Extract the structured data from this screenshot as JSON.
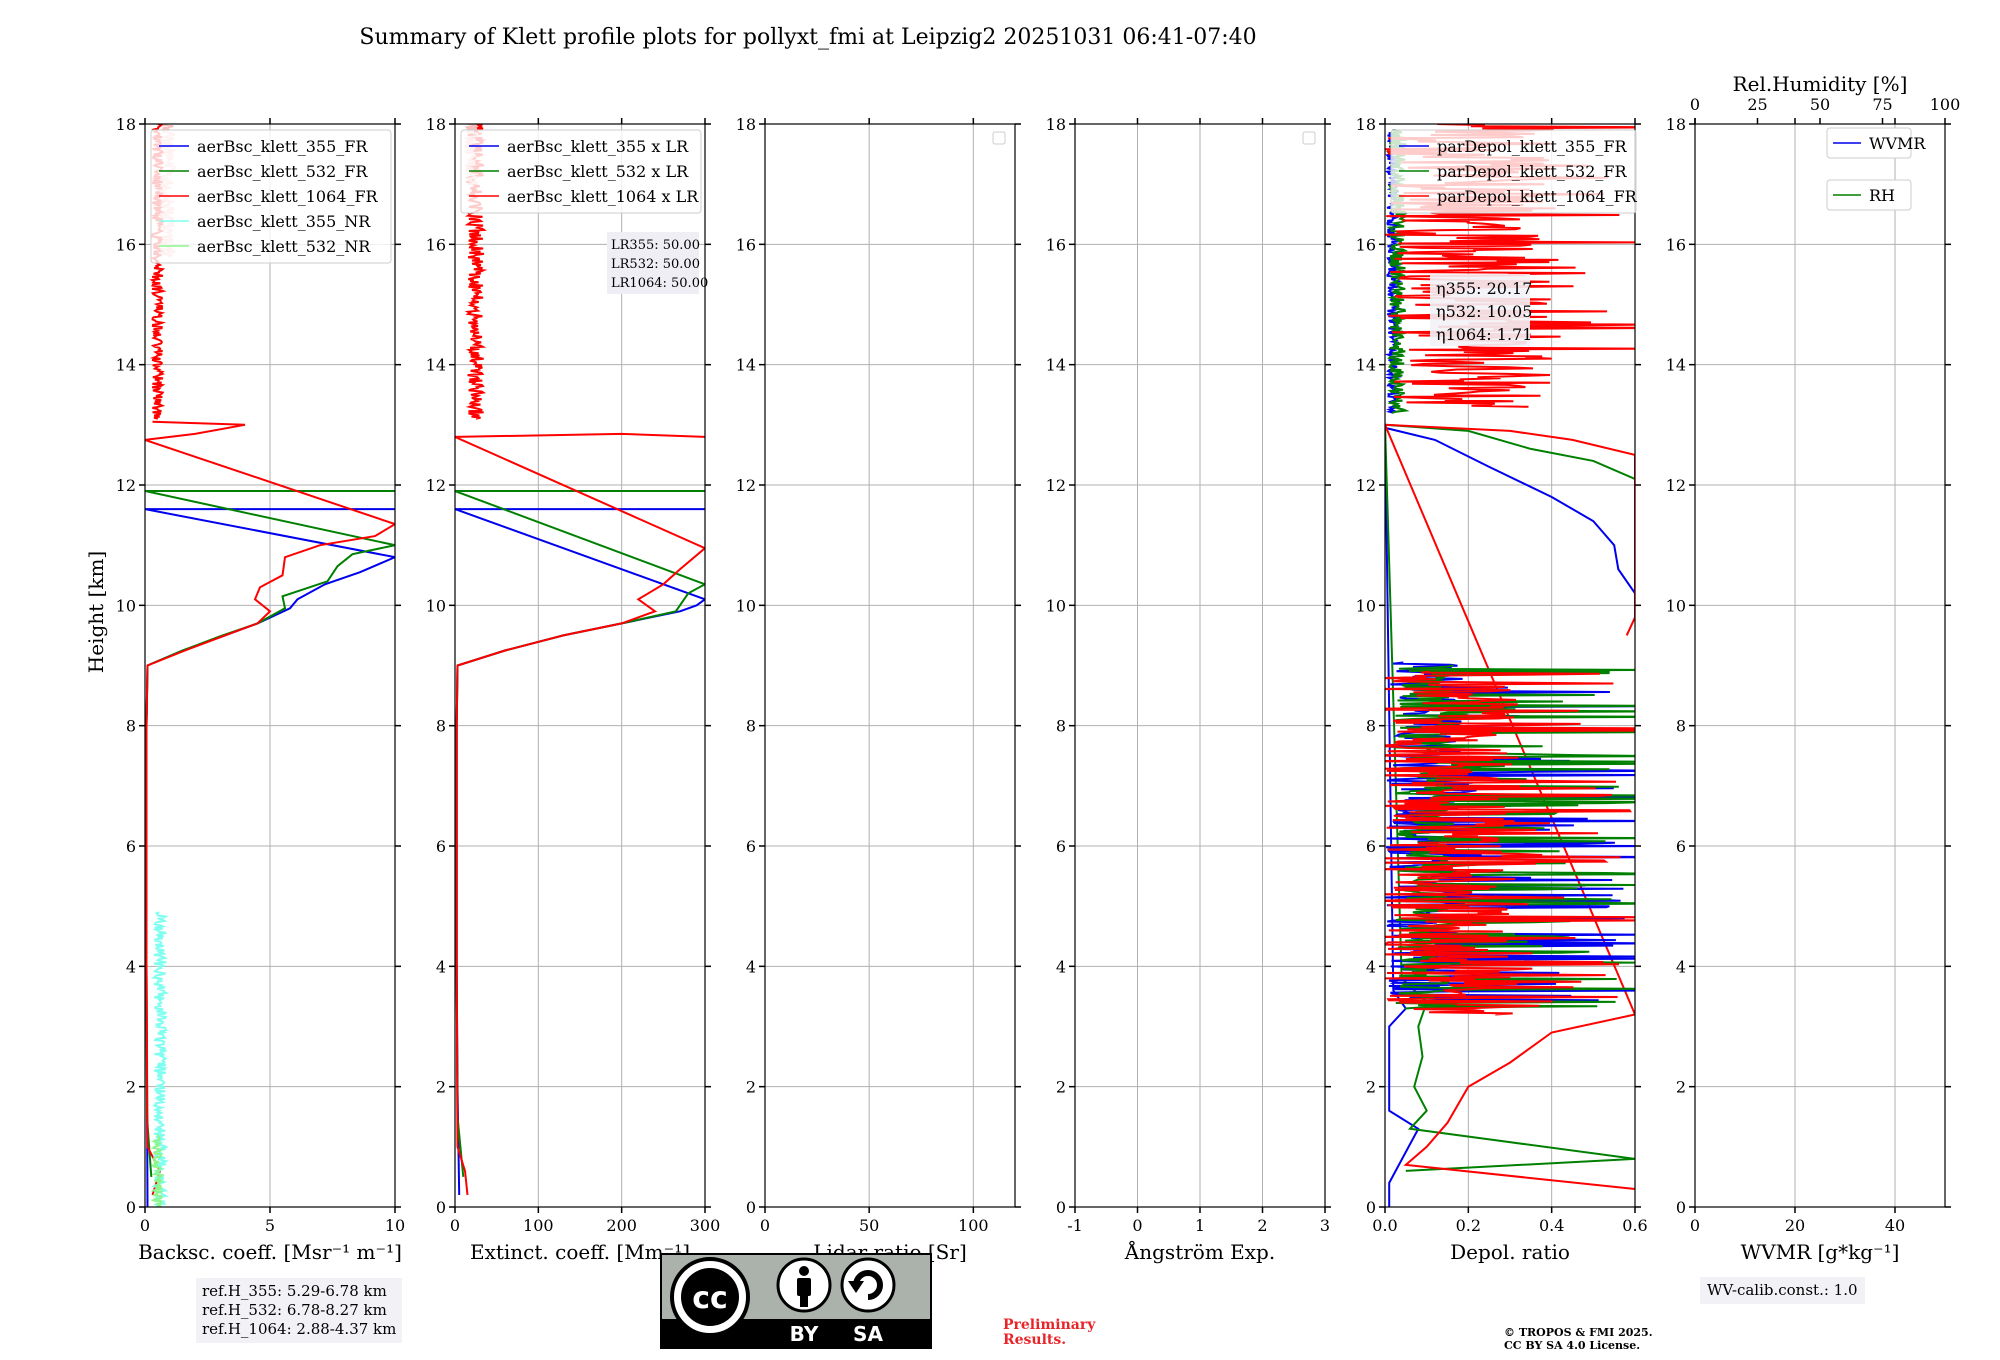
{
  "title": "Summary of Klett profile plots for pollyxt_fmi at Leipzig2 20251031 06:41-07:40",
  "shared": {
    "ylabel": "Height [km]",
    "ylim": [
      0,
      18
    ],
    "yticks": [
      0,
      2,
      4,
      6,
      8,
      10,
      12,
      14,
      16,
      18
    ]
  },
  "colors": {
    "blue": "#0000ee",
    "green": "#008000",
    "red": "#ff0000",
    "cyan": "#7fffef",
    "lightgreen": "#8cf58c",
    "pink": "#f7bebe"
  },
  "notes": {
    "ref_h": [
      "ref.H_355: 5.29-6.78 km",
      "ref.H_532: 6.78-8.27 km",
      "ref.H_1064: 2.88-4.37 km"
    ],
    "lr": [
      "LR355: 50.00",
      "LR532: 50.00",
      "LR1064: 50.00"
    ],
    "eta": [
      "η355: 20.17",
      "η532: 10.05",
      "η1064: 1.71"
    ],
    "preliminary": [
      "Preliminary",
      "Results."
    ],
    "copyright": [
      "© TROPOS & FMI 2025.",
      "CC BY SA 4.0 License."
    ],
    "wv_calib": "WV-calib.const.: 1.0",
    "cc_badge": {
      "cc": "cc",
      "by": "BY",
      "sa": "SA"
    }
  },
  "chart_data": [
    {
      "type": "line",
      "name": "backscatter",
      "xlabel": "Backsc. coeff. [Msr⁻¹ m⁻¹]",
      "xlim": [
        0,
        10
      ],
      "xticks": [
        0,
        5,
        10
      ],
      "legend": [
        "aerBsc_klett_355_FR",
        "aerBsc_klett_532_FR",
        "aerBsc_klett_1064_FR",
        "aerBsc_klett_355_NR",
        "aerBsc_klett_532_NR"
      ],
      "legend_colors": [
        "#0000ee",
        "#008000",
        "#ff0000",
        "#7fffef",
        "#8cf58c"
      ],
      "series": [
        {
          "name": "aerBsc_klett_355_FR",
          "color": "#0000ee",
          "points": [
            [
              0.1,
              0
            ],
            [
              0.08,
              2
            ],
            [
              0.06,
              4
            ],
            [
              0.06,
              6
            ],
            [
              0.06,
              8
            ],
            [
              0.1,
              9.0
            ],
            [
              1.5,
              9.25
            ],
            [
              3.2,
              9.5
            ],
            [
              4.5,
              9.7
            ],
            [
              5.8,
              9.95
            ],
            [
              6.1,
              10.1
            ],
            [
              7.2,
              10.35
            ],
            [
              8.6,
              10.55
            ],
            [
              10,
              10.8
            ],
            [
              0,
              11.6
            ],
            [
              10,
              11.6
            ]
          ]
        },
        {
          "name": "aerBsc_klett_532_FR",
          "color": "#008000",
          "points": [
            [
              0.25,
              0.5
            ],
            [
              0.08,
              1.5
            ],
            [
              0.06,
              4
            ],
            [
              0.06,
              8
            ],
            [
              0.1,
              9.0
            ],
            [
              1.5,
              9.25
            ],
            [
              3.1,
              9.5
            ],
            [
              4.5,
              9.7
            ],
            [
              5.6,
              9.95
            ],
            [
              5.5,
              10.15
            ],
            [
              7.3,
              10.4
            ],
            [
              7.7,
              10.65
            ],
            [
              8.3,
              10.85
            ],
            [
              10,
              11.0
            ],
            [
              0,
              11.9
            ],
            [
              10,
              11.9
            ]
          ]
        },
        {
          "name": "aerBsc_klett_1064_FR",
          "color": "#ff0000",
          "points": [
            [
              0.3,
              0.2
            ],
            [
              0.6,
              0.6
            ],
            [
              0.1,
              1.0
            ],
            [
              0.06,
              4
            ],
            [
              0.06,
              8
            ],
            [
              0.1,
              9.0
            ],
            [
              1.6,
              9.25
            ],
            [
              3.2,
              9.5
            ],
            [
              4.5,
              9.7
            ],
            [
              5,
              9.9
            ],
            [
              4.4,
              10.1
            ],
            [
              4.6,
              10.3
            ],
            [
              5.5,
              10.5
            ],
            [
              5.6,
              10.8
            ],
            [
              7,
              11.0
            ],
            [
              9.2,
              11.15
            ],
            [
              10,
              11.35
            ],
            [
              0,
              12.75
            ],
            [
              2,
              12.85
            ],
            [
              4,
              13.0
            ],
            [
              0.3,
              13.05
            ]
          ]
        },
        {
          "name": "aerBsc_klett_1064_FR_upper",
          "color": "#ff0000",
          "noise": true,
          "range": [
            13.1,
            18
          ],
          "xmean": 0.5,
          "xamp": 0.45
        },
        {
          "name": "aerBsc_klett_355_NR",
          "color": "#7fffef",
          "noise": true,
          "range": [
            0,
            4.9
          ],
          "xmean": 0.6,
          "xamp": 0.5
        },
        {
          "name": "aerBsc_klett_532_NR",
          "color": "#8cf58c",
          "noise": true,
          "range": [
            0,
            1.2
          ],
          "xmean": 0.5,
          "xamp": 0.4
        },
        {
          "name": "aerBsc_klett_pink",
          "color": "#f7bebe",
          "noise": true,
          "range": [
            15.8,
            18
          ],
          "xmean": 0.9,
          "xamp": 0.6
        }
      ]
    },
    {
      "type": "line",
      "name": "extinction",
      "xlabel": "Extinct. coeff. [Mm⁻¹]",
      "xlim": [
        0,
        300
      ],
      "xticks": [
        0,
        100,
        200,
        300
      ],
      "legend": [
        "aerBsc_klett_355 x LR",
        "aerBsc_klett_532 x LR",
        "aerBsc_klett_1064 x LR"
      ],
      "legend_colors": [
        "#0000ee",
        "#008000",
        "#ff0000"
      ],
      "series": [
        {
          "name": "ext_355",
          "color": "#0000ee",
          "points": [
            [
              5,
              0.2
            ],
            [
              3,
              2
            ],
            [
              2,
              4
            ],
            [
              2,
              8
            ],
            [
              3,
              9.0
            ],
            [
              60,
              9.25
            ],
            [
              130,
              9.5
            ],
            [
              200,
              9.7
            ],
            [
              270,
              9.9
            ],
            [
              290,
              10.0
            ],
            [
              300,
              10.1
            ],
            [
              0,
              11.6
            ],
            [
              300,
              11.6
            ]
          ]
        },
        {
          "name": "ext_532",
          "color": "#008000",
          "points": [
            [
              10,
              0.5
            ],
            [
              3,
              1.5
            ],
            [
              2,
              4
            ],
            [
              2,
              8
            ],
            [
              3,
              9.0
            ],
            [
              60,
              9.25
            ],
            [
              130,
              9.5
            ],
            [
              200,
              9.7
            ],
            [
              265,
              9.9
            ],
            [
              280,
              10.2
            ],
            [
              300,
              10.35
            ],
            [
              0,
              11.9
            ],
            [
              300,
              11.9
            ]
          ]
        },
        {
          "name": "ext_1064",
          "color": "#ff0000",
          "points": [
            [
              15,
              0.2
            ],
            [
              12,
              0.6
            ],
            [
              3,
              1.0
            ],
            [
              2,
              4
            ],
            [
              2,
              8
            ],
            [
              3,
              9.0
            ],
            [
              60,
              9.25
            ],
            [
              130,
              9.5
            ],
            [
              200,
              9.7
            ],
            [
              240,
              9.9
            ],
            [
              220,
              10.1
            ],
            [
              250,
              10.35
            ],
            [
              270,
              10.6
            ],
            [
              300,
              10.95
            ],
            [
              0,
              12.8
            ],
            [
              200,
              12.85
            ],
            [
              300,
              12.8
            ]
          ]
        },
        {
          "name": "ext_1064_upper",
          "color": "#ff0000",
          "noise": true,
          "range": [
            13.1,
            18
          ],
          "xmean": 25,
          "xamp": 20
        },
        {
          "name": "ext_pink",
          "color": "#f7bebe",
          "noise": true,
          "range": [
            17.0,
            18
          ],
          "xmean": 20,
          "xamp": 15
        }
      ]
    },
    {
      "type": "line",
      "name": "lidar_ratio",
      "xlabel": "Lidar ratio [Sr]",
      "xlim": [
        0,
        120
      ],
      "xticks": [
        0,
        50,
        100
      ],
      "series": []
    },
    {
      "type": "line",
      "name": "angstrom",
      "xlabel": "Ångström Exp.",
      "xlim": [
        -1,
        3
      ],
      "xticks": [
        -1,
        0,
        1,
        2,
        3
      ],
      "series": []
    },
    {
      "type": "line",
      "name": "depol",
      "xlabel": "Depol. ratio",
      "xlim": [
        0,
        0.6
      ],
      "xticks": [
        0.0,
        0.2,
        0.4,
        0.6
      ],
      "xtick_labels": [
        "0.0",
        "0.2",
        "0.4",
        "0.6"
      ],
      "legend": [
        "parDepol_klett_355_FR",
        "parDepol_klett_532_FR",
        "parDepol_klett_1064_FR"
      ],
      "legend_colors": [
        "#0000ee",
        "#008000",
        "#ff0000"
      ],
      "series": [
        {
          "name": "pd_355",
          "color": "#0000ee",
          "points": [
            [
              0.01,
              0
            ],
            [
              0.01,
              0.4
            ],
            [
              0.08,
              1.3
            ],
            [
              0.01,
              1.6
            ],
            [
              0.01,
              3.0
            ],
            [
              0.05,
              3.3
            ],
            [
              0.02,
              3.6
            ],
            [
              0,
              12.95
            ],
            [
              0.12,
              12.75
            ],
            [
              0.25,
              12.3
            ],
            [
              0.4,
              11.8
            ],
            [
              0.5,
              11.4
            ],
            [
              0.55,
              11.0
            ],
            [
              0.56,
              10.6
            ],
            [
              0.6,
              10.2
            ]
          ]
        },
        {
          "name": "pd_532",
          "color": "#008000",
          "points": [
            [
              0.05,
              0.6
            ],
            [
              0.6,
              0.8
            ],
            [
              0.06,
              1.3
            ],
            [
              0.1,
              1.6
            ],
            [
              0.07,
              2.0
            ],
            [
              0.09,
              2.5
            ],
            [
              0.08,
              3.0
            ],
            [
              0.1,
              3.4
            ],
            [
              0.04,
              3.8
            ],
            [
              0,
              13.0
            ],
            [
              0.2,
              12.9
            ],
            [
              0.35,
              12.6
            ],
            [
              0.5,
              12.4
            ],
            [
              0.6,
              12.1
            ]
          ]
        },
        {
          "name": "pd_1064",
          "color": "#ff0000",
          "points": [
            [
              0.6,
              0.3
            ],
            [
              0.05,
              0.7
            ],
            [
              0.1,
              1.0
            ],
            [
              0.15,
              1.4
            ],
            [
              0.2,
              2.0
            ],
            [
              0.3,
              2.4
            ],
            [
              0.4,
              2.9
            ],
            [
              0.6,
              3.2
            ],
            [
              0,
              13.0
            ],
            [
              0.3,
              12.9
            ],
            [
              0.45,
              12.75
            ],
            [
              0.6,
              12.5
            ],
            [
              0.6,
              9.8
            ],
            [
              0.58,
              9.5
            ]
          ]
        },
        {
          "name": "pd_blue_noise",
          "color": "#0000ee",
          "noise": true,
          "range": [
            3.4,
            9.05
          ],
          "xmean": 0.1,
          "xamp": 0.2,
          "spikes": true
        },
        {
          "name": "pd_green_noise",
          "color": "#008000",
          "noise": true,
          "range": [
            3.3,
            9.0
          ],
          "xmean": 0.1,
          "xamp": 0.15,
          "spikes": true
        },
        {
          "name": "pd_red_noise",
          "color": "#ff0000",
          "noise": true,
          "range": [
            3.2,
            8.9
          ],
          "xmean": 0.15,
          "xamp": 0.35,
          "spikes": true
        },
        {
          "name": "pd_upper_blue",
          "color": "#0000ee",
          "noise": true,
          "range": [
            13.2,
            17.9
          ],
          "xmean": 0.02,
          "xamp": 0.03
        },
        {
          "name": "pd_upper_green",
          "color": "#008000",
          "noise": true,
          "range": [
            13.2,
            17.9
          ],
          "xmean": 0.03,
          "xamp": 0.04
        },
        {
          "name": "pd_upper_red",
          "color": "#ff0000",
          "noise": true,
          "range": [
            13.3,
            18
          ],
          "xmean": 0.2,
          "xamp": 0.4,
          "spikes": true
        }
      ]
    },
    {
      "type": "line",
      "name": "wvmr",
      "xlabel": "WVMR [g*kg⁻¹]",
      "xlim": [
        0,
        50
      ],
      "xticks": [
        0,
        20,
        40
      ],
      "top_xlabel": "Rel.Humidity [%]",
      "top_xticks": [
        0,
        25,
        50,
        75,
        100
      ],
      "legend": [
        "WVMR",
        "RH"
      ],
      "legend_colors": [
        "#0000ee",
        "#008000"
      ],
      "series": []
    }
  ]
}
